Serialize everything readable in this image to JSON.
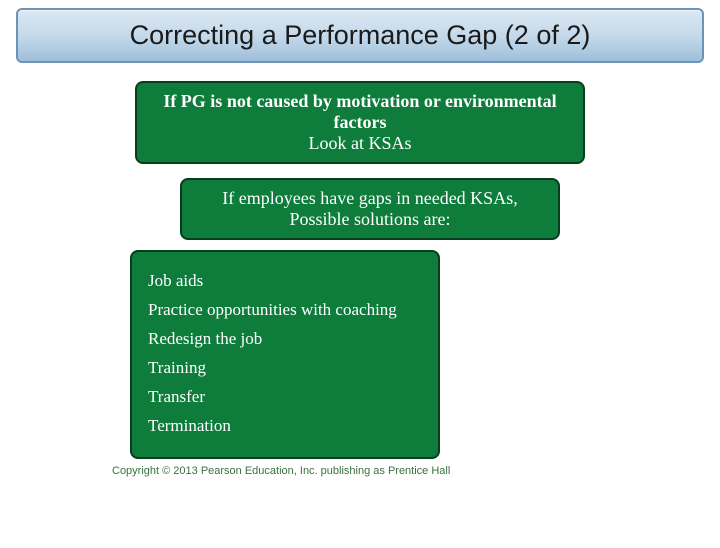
{
  "title": "Correcting a Performance Gap (2 of 2)",
  "box1": {
    "line1": "If PG is not caused by motivation or environmental factors",
    "line2": "Look at KSAs"
  },
  "box2": {
    "line1": "If employees have gaps in needed KSAs,",
    "line2": "Possible solutions are:"
  },
  "solutions": [
    "Job aids",
    "Practice opportunities with coaching",
    "Redesign the job",
    "Training",
    "Transfer",
    "Termination"
  ],
  "copyright": "Copyright © 2013 Pearson Education, Inc. publishing as Prentice Hall",
  "colors": {
    "title_bg_top": "#dbe8f3",
    "title_bg_bottom": "#9fbfda",
    "title_border": "#6c93b8",
    "box_bg": "#0e7c3a",
    "box_border": "#063d1d",
    "box_text": "#ffffff",
    "copyright_text": "#3a7040"
  },
  "layout": {
    "slide_width": 720,
    "slide_height": 540,
    "title_fontsize": 27,
    "box_text_fontsize": 18,
    "solution_fontsize": 17,
    "copyright_fontsize": 11
  }
}
